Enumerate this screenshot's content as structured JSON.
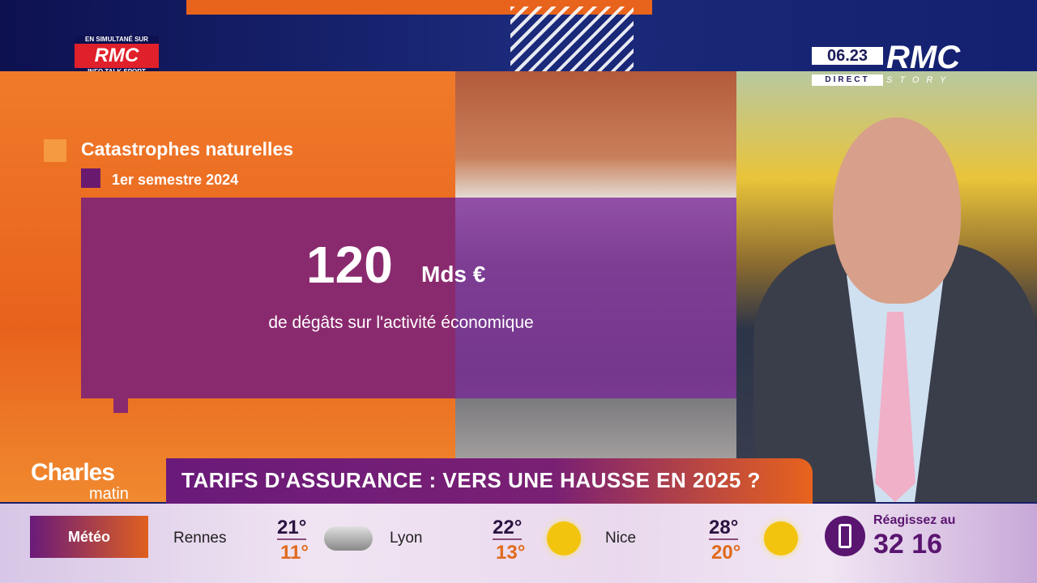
{
  "channel_simulcast": {
    "top": "EN SIMULTANÉ SUR",
    "logo": "RMC",
    "bottom": "INFO TALK SPORT"
  },
  "channel_bug": {
    "time": "06.23",
    "direct": "DIRECT",
    "logo": "RMC",
    "sub": "STORY"
  },
  "infographic": {
    "title": "Catastrophes naturelles",
    "subtitle": "1er semestre 2024",
    "value": "120",
    "unit": "Mds €",
    "description": "de dégâts sur l'activité économique",
    "colors": {
      "orange": "#f07a2a",
      "purple": "#8a2a6e"
    }
  },
  "show": {
    "name": "Charles",
    "sub": "matin"
  },
  "headline": "TARIFS D'ASSURANCE : VERS UNE HAUSSE EN 2025 ?",
  "weather": {
    "label": "Météo",
    "cities": [
      {
        "name": "Rennes",
        "high": "21°",
        "low": "11°",
        "icon": "cloud-icon"
      },
      {
        "name": "Lyon",
        "high": "22°",
        "low": "13°",
        "icon": "sun-cloud-icon"
      },
      {
        "name": "Nice",
        "high": "28°",
        "low": "20°",
        "icon": "sun-icon"
      }
    ]
  },
  "call_to_action": {
    "text": "Réagissez au",
    "number": "32 16",
    "icon": "phone-icon"
  }
}
